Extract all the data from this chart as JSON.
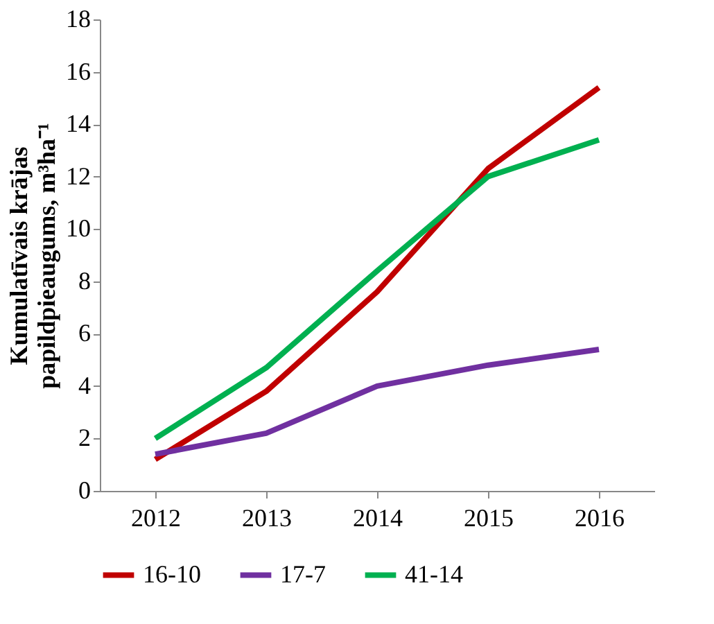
{
  "chart_data": {
    "type": "line",
    "ylabel": "Kumulatīvais krājas papildpieaugums, m³ha⁻¹",
    "categories": [
      "2012",
      "2013",
      "2014",
      "2015",
      "2016"
    ],
    "series": [
      {
        "name": "16-10",
        "color": "#c00000",
        "values": [
          1.2,
          3.8,
          7.6,
          12.3,
          15.4
        ]
      },
      {
        "name": "17-7",
        "color": "#7030a0",
        "values": [
          1.4,
          2.2,
          4.0,
          4.8,
          5.4
        ]
      },
      {
        "name": "41-14",
        "color": "#00b050",
        "values": [
          2.0,
          4.7,
          8.4,
          12.0,
          13.4
        ]
      }
    ],
    "ylim": [
      0,
      18
    ],
    "yticks": [
      0,
      2,
      4,
      6,
      8,
      10,
      12,
      14,
      16,
      18
    ],
    "grid": false,
    "legend": "bottom",
    "marker": "none",
    "line_style": "solid"
  }
}
